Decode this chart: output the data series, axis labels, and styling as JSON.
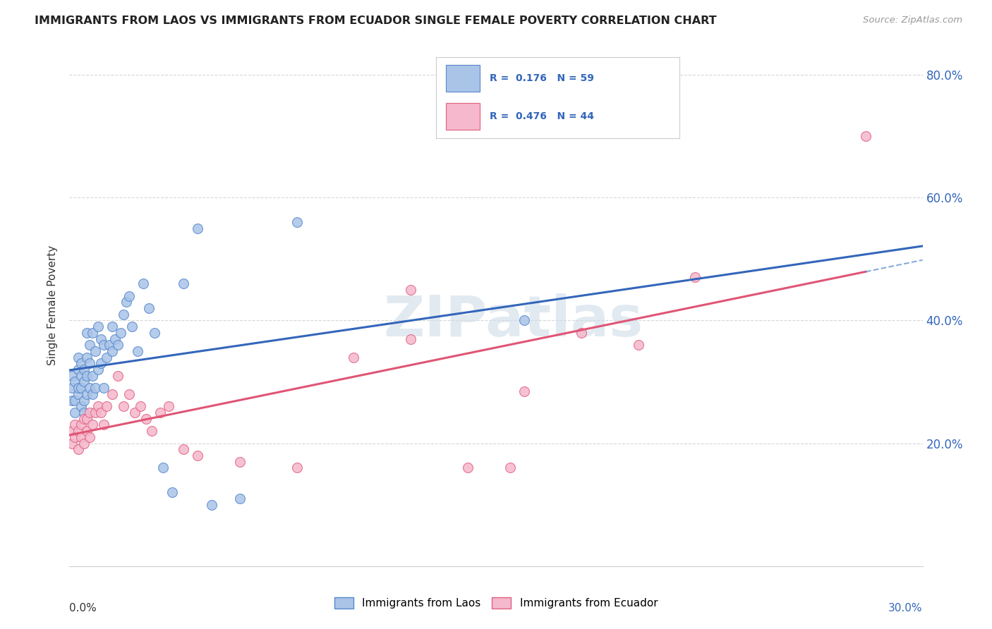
{
  "title": "IMMIGRANTS FROM LAOS VS IMMIGRANTS FROM ECUADOR SINGLE FEMALE POVERTY CORRELATION CHART",
  "source": "Source: ZipAtlas.com",
  "ylabel": "Single Female Poverty",
  "legend_label1": "Immigrants from Laos",
  "legend_label2": "Immigrants from Ecuador",
  "R1": 0.176,
  "N1": 59,
  "R2": 0.476,
  "N2": 44,
  "color_laos_fill": "#aac4e8",
  "color_laos_edge": "#5588cc",
  "color_ecuador_fill": "#f5b8cc",
  "color_ecuador_edge": "#e06080",
  "color_laos_line": "#3366bb",
  "color_ecuador_line": "#e05575",
  "xlim": [
    0.0,
    0.3
  ],
  "ylim": [
    0.0,
    0.85
  ],
  "laos_x": [
    0.001,
    0.001,
    0.001,
    0.002,
    0.002,
    0.002,
    0.003,
    0.003,
    0.003,
    0.003,
    0.004,
    0.004,
    0.004,
    0.004,
    0.005,
    0.005,
    0.005,
    0.005,
    0.006,
    0.006,
    0.006,
    0.006,
    0.007,
    0.007,
    0.007,
    0.008,
    0.008,
    0.008,
    0.009,
    0.009,
    0.01,
    0.01,
    0.011,
    0.011,
    0.012,
    0.012,
    0.013,
    0.014,
    0.015,
    0.015,
    0.016,
    0.017,
    0.018,
    0.019,
    0.02,
    0.021,
    0.022,
    0.024,
    0.026,
    0.028,
    0.03,
    0.033,
    0.036,
    0.04,
    0.045,
    0.05,
    0.06,
    0.08,
    0.16
  ],
  "laos_y": [
    0.27,
    0.29,
    0.31,
    0.25,
    0.27,
    0.3,
    0.28,
    0.32,
    0.34,
    0.29,
    0.26,
    0.29,
    0.31,
    0.33,
    0.25,
    0.27,
    0.3,
    0.32,
    0.28,
    0.31,
    0.34,
    0.38,
    0.29,
    0.33,
    0.36,
    0.28,
    0.31,
    0.38,
    0.29,
    0.35,
    0.32,
    0.39,
    0.33,
    0.37,
    0.29,
    0.36,
    0.34,
    0.36,
    0.35,
    0.39,
    0.37,
    0.36,
    0.38,
    0.41,
    0.43,
    0.44,
    0.39,
    0.35,
    0.46,
    0.42,
    0.38,
    0.16,
    0.12,
    0.46,
    0.55,
    0.1,
    0.11,
    0.56,
    0.4
  ],
  "ecuador_x": [
    0.001,
    0.001,
    0.002,
    0.002,
    0.003,
    0.003,
    0.004,
    0.004,
    0.005,
    0.005,
    0.006,
    0.006,
    0.007,
    0.007,
    0.008,
    0.009,
    0.01,
    0.011,
    0.012,
    0.013,
    0.015,
    0.017,
    0.019,
    0.021,
    0.023,
    0.025,
    0.027,
    0.029,
    0.032,
    0.035,
    0.04,
    0.045,
    0.06,
    0.08,
    0.1,
    0.12,
    0.14,
    0.16,
    0.18,
    0.2,
    0.12,
    0.155,
    0.22,
    0.28
  ],
  "ecuador_y": [
    0.2,
    0.22,
    0.21,
    0.23,
    0.19,
    0.22,
    0.21,
    0.23,
    0.2,
    0.24,
    0.22,
    0.24,
    0.21,
    0.25,
    0.23,
    0.25,
    0.26,
    0.25,
    0.23,
    0.26,
    0.28,
    0.31,
    0.26,
    0.28,
    0.25,
    0.26,
    0.24,
    0.22,
    0.25,
    0.26,
    0.19,
    0.18,
    0.17,
    0.16,
    0.34,
    0.45,
    0.16,
    0.285,
    0.38,
    0.36,
    0.37,
    0.16,
    0.47,
    0.7
  ],
  "background_color": "#ffffff",
  "grid_color": "#cccccc",
  "watermark": "ZIPatlas",
  "yticks": [
    0.2,
    0.4,
    0.6,
    0.8
  ],
  "ytick_labels": [
    "20.0%",
    "40.0%",
    "60.0%",
    "80.0%"
  ]
}
